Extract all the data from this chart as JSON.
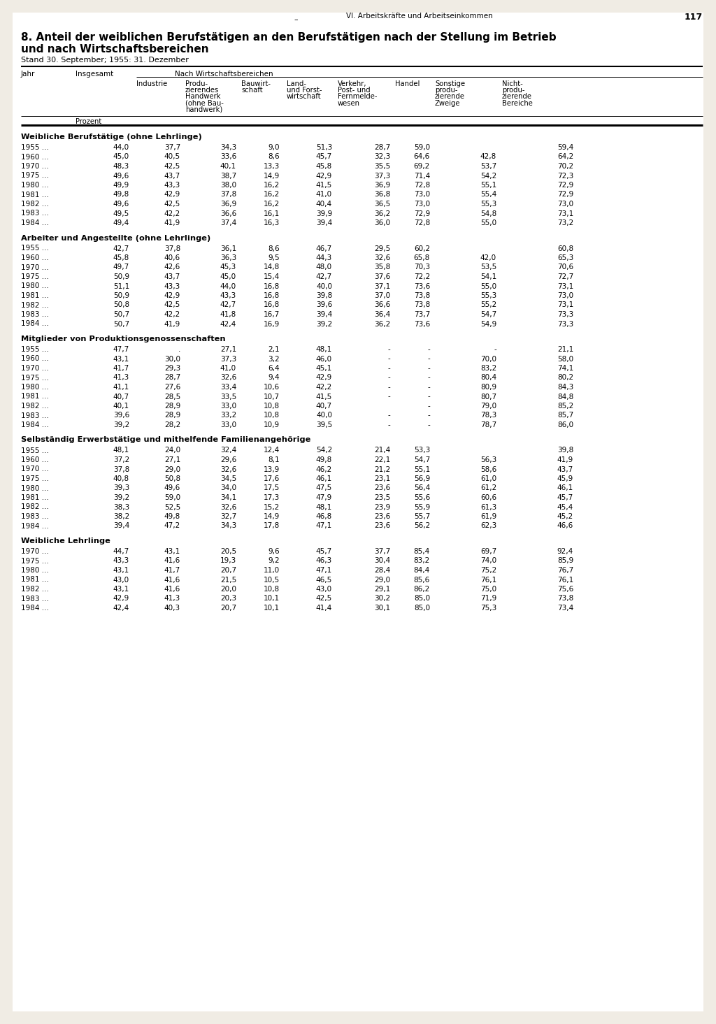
{
  "page_header": "VI. Arbeitskräfte und Arbeitseinkommen",
  "page_number": "117",
  "title_line1": "8. Anteil der weiblichen Berufstätigen an den Berufstätigen nach der Stellung im Betrieb",
  "title_line2": "und nach Wirtschaftsbereichen",
  "subtitle": "Stand 30. September; 1955: 31. Dezember",
  "sections": [
    {
      "title": "Weibliche Berufstätige (ohne Lehrlinge)",
      "rows": [
        [
          "1955 ...",
          "44,0",
          "37,7",
          "34,3",
          "9,0",
          "51,3",
          "28,7",
          "59,0",
          "",
          "59,4"
        ],
        [
          "1960 ...",
          "45,0",
          "40,5",
          "33,6",
          "8,6",
          "45,7",
          "32,3",
          "64,6",
          "42,8",
          "64,2"
        ],
        [
          "1970 ...",
          "48,3",
          "42,5",
          "40,1",
          "13,3",
          "45,8",
          "35,5",
          "69,2",
          "53,7",
          "70,2"
        ],
        [
          "1975 ...",
          "49,6",
          "43,7",
          "38,7",
          "14,9",
          "42,9",
          "37,3",
          "71,4",
          "54,2",
          "72,3"
        ],
        [
          "1980 ...",
          "49,9",
          "43,3",
          "38,0",
          "16,2",
          "41,5",
          "36,9",
          "72,8",
          "55,1",
          "72,9"
        ],
        [
          "1981 ...",
          "49,8",
          "42,9",
          "37,8",
          "16,2",
          "41,0",
          "36,8",
          "73,0",
          "55,4",
          "72,9"
        ],
        [
          "1982 ...",
          "49,6",
          "42,5",
          "36,9",
          "16,2",
          "40,4",
          "36,5",
          "73,0",
          "55,3",
          "73,0"
        ],
        [
          "1983 ...",
          "49,5",
          "42,2",
          "36,6",
          "16,1",
          "39,9",
          "36,2",
          "72,9",
          "54,8",
          "73,1"
        ],
        [
          "1984 ...",
          "49,4",
          "41,9",
          "37,4",
          "16,3",
          "39,4",
          "36,0",
          "72,8",
          "55,0",
          "73,2"
        ]
      ]
    },
    {
      "title": "Arbeiter und Angestellte (ohne Lehrlinge)",
      "rows": [
        [
          "1955 ...",
          "42,7",
          "37,8",
          "36,1",
          "8,6",
          "46,7",
          "29,5",
          "60,2",
          "",
          "60,8"
        ],
        [
          "1960 ...",
          "45,8",
          "40,6",
          "36,3",
          "9,5",
          "44,3",
          "32,6",
          "65,8",
          "42,0",
          "65,3"
        ],
        [
          "1970 ...",
          "49,7",
          "42,6",
          "45,3",
          "14,8",
          "48,0",
          "35,8",
          "70,3",
          "53,5",
          "70,6"
        ],
        [
          "1975 ...",
          "50,9",
          "43,7",
          "45,0",
          "15,4",
          "42,7",
          "37,6",
          "72,2",
          "54,1",
          "72,7"
        ],
        [
          "1980 ...",
          "51,1",
          "43,3",
          "44,0",
          "16,8",
          "40,0",
          "37,1",
          "73,6",
          "55,0",
          "73,1"
        ],
        [
          "1981 ...",
          "50,9",
          "42,9",
          "43,3",
          "16,8",
          "39,8",
          "37,0",
          "73,8",
          "55,3",
          "73,0"
        ],
        [
          "1982 ...",
          "50,8",
          "42,5",
          "42,7",
          "16,8",
          "39,6",
          "36,6",
          "73,8",
          "55,2",
          "73,1"
        ],
        [
          "1983 ...",
          "50,7",
          "42,2",
          "41,8",
          "16,7",
          "39,4",
          "36,4",
          "73,7",
          "54,7",
          "73,3"
        ],
        [
          "1984 ...",
          "50,7",
          "41,9",
          "42,4",
          "16,9",
          "39,2",
          "36,2",
          "73,6",
          "54,9",
          "73,3"
        ]
      ]
    },
    {
      "title": "Mitglieder von Produktionsgenossenschaften",
      "rows": [
        [
          "1955 ...",
          "47,7",
          ".",
          "27,1",
          "2,1",
          "48,1",
          "-",
          "-",
          "-",
          "21,1"
        ],
        [
          "1960 ...",
          "43,1",
          "30,0",
          "37,3",
          "3,2",
          "46,0",
          "-",
          "-",
          "70,0",
          "58,0"
        ],
        [
          "1970 ...",
          "41,7",
          "29,3",
          "41,0",
          "6,4",
          "45,1",
          "-",
          "-",
          "83,2",
          "74,1"
        ],
        [
          "1975 ...",
          "41,3",
          "28,7",
          "32,6",
          "9,4",
          "42,9",
          "-",
          "-",
          "80,4",
          "80,2"
        ],
        [
          "1980 ...",
          "41,1",
          "27,6",
          "33,4",
          "10,6",
          "42,2",
          "-",
          "-",
          "80,9",
          "84,3"
        ],
        [
          "1981 ...",
          "40,7",
          "28,5",
          "33,5",
          "10,7",
          "41,5",
          "-",
          "-",
          "80,7",
          "84,8"
        ],
        [
          "1982 ...",
          "40,1",
          "28,9",
          "33,0",
          "10,8",
          "40,7",
          "",
          "-",
          "79,0",
          "85,2"
        ],
        [
          "1983 ...",
          "39,6",
          "28,9",
          "33,2",
          "10,8",
          "40,0",
          "-",
          "-",
          "78,3",
          "85,7"
        ],
        [
          "1984 ...",
          "39,2",
          "28,2",
          "33,0",
          "10,9",
          "39,5",
          "-",
          "-",
          "78,7",
          "86,0"
        ]
      ]
    },
    {
      "title": "Selbständig Erwerbstätige und mithelfende Familienangehörige",
      "rows": [
        [
          "1955 ...",
          "48,1",
          "24,0",
          "32,4",
          "12,4",
          "54,2",
          "21,4",
          "53,3",
          "",
          "39,8"
        ],
        [
          "1960 ...",
          "37,2",
          "27,1",
          "29,6",
          "8,1",
          "49,8",
          "22,1",
          "54,7",
          "56,3",
          "41,9"
        ],
        [
          "1970 ...",
          "37,8",
          "29,0",
          "32,6",
          "13,9",
          "46,2",
          "21,2",
          "55,1",
          "58,6",
          "43,7"
        ],
        [
          "1975 ...",
          "40,8",
          "50,8",
          "34,5",
          "17,6",
          "46,1",
          "23,1",
          "56,9",
          "61,0",
          "45,9"
        ],
        [
          "1980 ...",
          "39,3",
          "49,6",
          "34,0",
          "17,5",
          "47,5",
          "23,6",
          "56,4",
          "61,2",
          "46,1"
        ],
        [
          "1981 ...",
          "39,2",
          "59,0",
          "34,1",
          "17,3",
          "47,9",
          "23,5",
          "55,6",
          "60,6",
          "45,7"
        ],
        [
          "1982 ...",
          "38,3",
          "52,5",
          "32,6",
          "15,2",
          "48,1",
          "23,9",
          "55,9",
          "61,3",
          "45,4"
        ],
        [
          "1983 ...",
          "38,2",
          "49,8",
          "32,7",
          "14,9",
          "46,8",
          "23,6",
          "55,7",
          "61,9",
          "45,2"
        ],
        [
          "1984 ...",
          "39,4",
          "47,2",
          "34,3",
          "17,8",
          "47,1",
          "23,6",
          "56,2",
          "62,3",
          "46,6"
        ]
      ]
    },
    {
      "title": "Weibliche Lehrlinge",
      "rows": [
        [
          "1970 ...",
          "44,7",
          "43,1",
          "20,5",
          "9,6",
          "45,7",
          "37,7",
          "85,4",
          "69,7",
          "92,4"
        ],
        [
          "1975 ...",
          "43,3",
          "41,6",
          "19,3",
          "9,2",
          "46,3",
          "30,4",
          "83,2",
          "74,0",
          "85,9"
        ],
        [
          "1980 ...",
          "43,1",
          "41,7",
          "20,7",
          "11,0",
          "47,1",
          "28,4",
          "84,4",
          "75,2",
          "76,7"
        ],
        [
          "1981 ...",
          "43,0",
          "41,6",
          "21,5",
          "10,5",
          "46,5",
          "29,0",
          "85,6",
          "76,1",
          "76,1"
        ],
        [
          "1982 ...",
          "43,1",
          "41,6",
          "20,0",
          "10,8",
          "43,0",
          "29,1",
          "86,2",
          "75,0",
          "75,6"
        ],
        [
          "1983 ...",
          "42,9",
          "41,3",
          "20,3",
          "10,1",
          "42,5",
          "30,2",
          "85,0",
          "71,9",
          "73,8"
        ],
        [
          "1984 ...",
          "42,4",
          "40,3",
          "20,7",
          "10,1",
          "41,4",
          "30,1",
          "85,0",
          "75,3",
          "73,4"
        ]
      ]
    }
  ]
}
